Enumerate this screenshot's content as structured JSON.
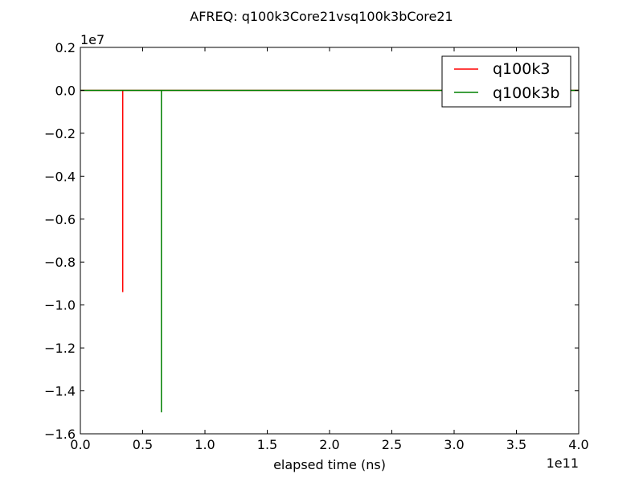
{
  "chart_data": {
    "type": "line",
    "title": "AFREQ: q100k3Core21vsq100k3bCore21",
    "xlabel": "elapsed time (ns)",
    "ylabel": "",
    "x_exponent_label": "1e11",
    "y_exponent_label": "1e7",
    "xlim": [
      0.0,
      400000000000.0
    ],
    "ylim": [
      -16000000.0,
      2000000.0
    ],
    "x_tick_labels": [
      "0.0",
      "0.5",
      "1.0",
      "1.5",
      "2.0",
      "2.5",
      "3.0",
      "3.5",
      "4.0"
    ],
    "x_tick_values": [
      0.0,
      50000000000.0,
      100000000000.0,
      150000000000.0,
      200000000000.0,
      250000000000.0,
      300000000000.0,
      350000000000.0,
      400000000000.0
    ],
    "y_tick_labels": [
      "0.2",
      "0.0",
      "−0.2",
      "−0.4",
      "−0.6",
      "−0.8",
      "−1.0",
      "−1.2",
      "−1.4",
      "−1.6"
    ],
    "y_tick_values": [
      2000000.0,
      0.0,
      -2000000.0,
      -4000000.0,
      -6000000.0,
      -8000000.0,
      -10000000.0,
      -12000000.0,
      -14000000.0,
      -16000000.0
    ],
    "grid": false,
    "legend_position": "top-right",
    "series": [
      {
        "name": "q100k3",
        "color": "#ff0000",
        "x": [
          0.0,
          34000000000.0,
          34000000000.0,
          34000000000.0,
          400000000000.0
        ],
        "y": [
          0.0,
          0.0,
          -9400000.0,
          0.0,
          0.0
        ]
      },
      {
        "name": "q100k3b",
        "color": "#008000",
        "x": [
          0.0,
          65000000000.0,
          65000000000.0,
          65000000000.0,
          400000000000.0
        ],
        "y": [
          0.0,
          0.0,
          -15000000.0,
          0.0,
          0.0
        ]
      }
    ]
  }
}
